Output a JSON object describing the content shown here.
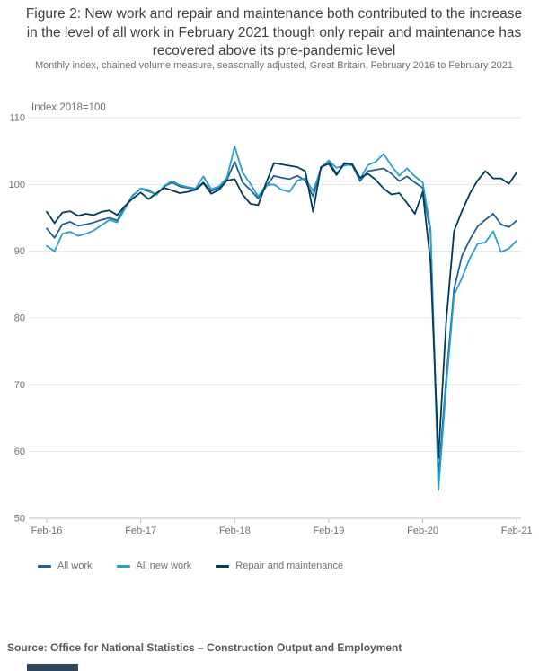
{
  "header": {
    "title": "Figure 2: New work and repair and maintenance both contributed to the increase in the level of all work in February 2021 though only repair and maintenance has recovered above its pre-pandemic level",
    "subtitle": "Monthly index, chained volume measure, seasonally adjusted, Great Britain, February 2016 to February 2021"
  },
  "footer": {
    "source": "Source: Office for National Statistics – Construction Output and Employment"
  },
  "chart_data": {
    "type": "line",
    "axis_note": "Index 2018=100",
    "grid": true,
    "legend_position": "bottom-left",
    "ylim": [
      50,
      110
    ],
    "y_ticks": [
      50,
      60,
      70,
      80,
      90,
      100,
      110
    ],
    "x_tick_labels": [
      "Feb-16",
      "Feb-17",
      "Feb-18",
      "Feb-19",
      "Feb-20",
      "Feb-21"
    ],
    "x_tick_indices": [
      0,
      12,
      24,
      36,
      48,
      60
    ],
    "x": [
      "Feb-16",
      "Mar-16",
      "Apr-16",
      "May-16",
      "Jun-16",
      "Jul-16",
      "Aug-16",
      "Sep-16",
      "Oct-16",
      "Nov-16",
      "Dec-16",
      "Jan-17",
      "Feb-17",
      "Mar-17",
      "Apr-17",
      "May-17",
      "Jun-17",
      "Jul-17",
      "Aug-17",
      "Sep-17",
      "Oct-17",
      "Nov-17",
      "Dec-17",
      "Jan-18",
      "Feb-18",
      "Mar-18",
      "Apr-18",
      "May-18",
      "Jun-18",
      "Jul-18",
      "Aug-18",
      "Sep-18",
      "Oct-18",
      "Nov-18",
      "Dec-18",
      "Jan-19",
      "Feb-19",
      "Mar-19",
      "Apr-19",
      "May-19",
      "Jun-19",
      "Jul-19",
      "Aug-19",
      "Sep-19",
      "Oct-19",
      "Nov-19",
      "Dec-19",
      "Jan-20",
      "Feb-20",
      "Mar-20",
      "Apr-20",
      "May-20",
      "Jun-20",
      "Jul-20",
      "Aug-20",
      "Sep-20",
      "Oct-20",
      "Nov-20",
      "Dec-20",
      "Jan-21",
      "Feb-21"
    ],
    "series": [
      {
        "name": "All work",
        "color": "#206095",
        "values": [
          93.4,
          92.0,
          94.0,
          94.4,
          93.8,
          94.0,
          94.3,
          94.7,
          95.0,
          94.6,
          96.6,
          98.4,
          99.3,
          99.0,
          98.5,
          99.7,
          100.3,
          99.7,
          99.5,
          99.3,
          100.3,
          99.0,
          99.5,
          100.7,
          103.4,
          100.3,
          99.2,
          97.9,
          99.7,
          101.3,
          101.0,
          100.8,
          101.3,
          100.6,
          98.2,
          102.5,
          103.5,
          101.6,
          103.0,
          102.9,
          100.5,
          102.0,
          102.2,
          102.4,
          101.6,
          100.5,
          101.2,
          100.3,
          99.5,
          92.7,
          55.9,
          71.0,
          84.3,
          89.3,
          91.7,
          93.7,
          94.7,
          95.6,
          94.0,
          93.6,
          94.6
        ]
      },
      {
        "name": "All new work",
        "color": "#27a0cc",
        "values": [
          90.8,
          90.0,
          92.6,
          92.9,
          92.3,
          92.6,
          93.1,
          93.9,
          94.7,
          94.3,
          96.4,
          98.3,
          99.4,
          99.2,
          98.4,
          99.8,
          100.5,
          99.9,
          99.6,
          99.4,
          101.2,
          99.3,
          99.7,
          101.0,
          105.7,
          101.8,
          100.1,
          98.2,
          99.9,
          100.0,
          99.2,
          98.9,
          100.6,
          100.9,
          99.0,
          102.3,
          103.6,
          102.5,
          102.8,
          103.1,
          100.8,
          102.9,
          103.4,
          104.6,
          102.8,
          101.3,
          102.4,
          101.2,
          100.3,
          93.3,
          54.2,
          69.8,
          83.4,
          86.0,
          88.9,
          91.1,
          91.3,
          93.0,
          89.9,
          90.4,
          91.6
        ]
      },
      {
        "name": "Repair and maintenance",
        "color": "#003c57",
        "values": [
          95.9,
          94.2,
          95.8,
          96.0,
          95.3,
          95.6,
          95.4,
          95.9,
          96.1,
          95.4,
          96.8,
          97.9,
          98.8,
          97.8,
          98.7,
          99.5,
          99.1,
          98.7,
          98.9,
          99.2,
          100.2,
          98.6,
          99.2,
          100.6,
          100.8,
          98.5,
          97.1,
          96.9,
          100.2,
          103.2,
          103.0,
          102.8,
          102.6,
          102.0,
          95.9,
          102.6,
          103.1,
          101.4,
          103.2,
          103.0,
          101.0,
          101.6,
          100.7,
          99.4,
          98.5,
          98.7,
          97.2,
          95.6,
          98.9,
          88.2,
          59.0,
          79.5,
          93.0,
          96.0,
          98.6,
          100.6,
          102.0,
          100.9,
          100.9,
          100.1,
          101.8
        ]
      }
    ]
  },
  "colors": {
    "title_text": "#414042",
    "muted_text": "#707071",
    "gridline": "#e4e4e4",
    "axis_line": "#bfbfbf"
  }
}
